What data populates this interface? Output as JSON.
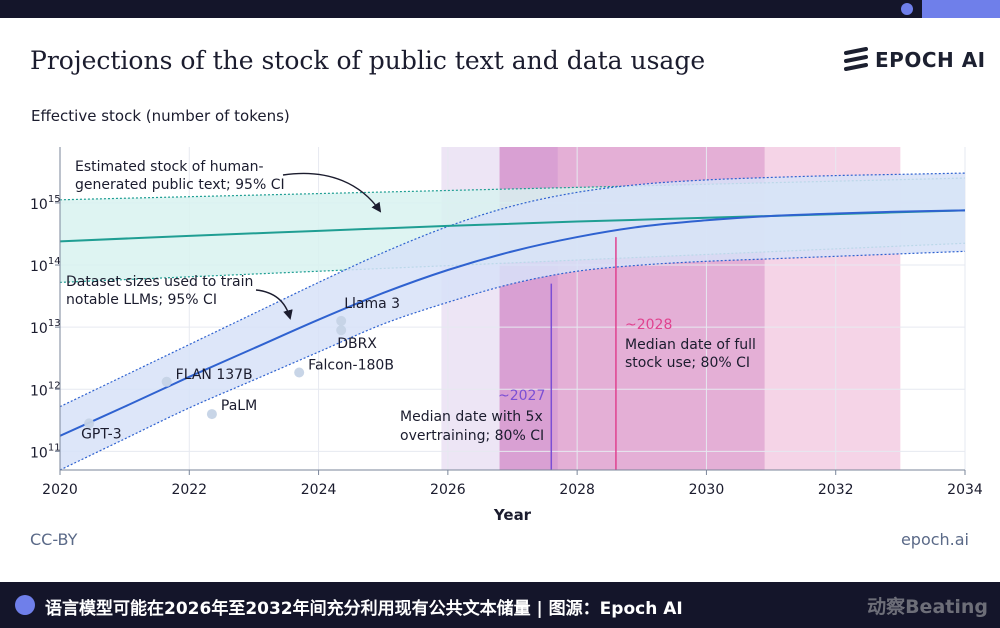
{
  "header": {
    "title": "Projections of the stock of public text and data usage",
    "brand": "EPOCH AI"
  },
  "footer": {
    "license": "CC-BY",
    "site": "epoch.ai"
  },
  "caption_bar": {
    "text": "语言模型可能在2026年至2032年间充分利用现有公共文本储量 | 图源：Epoch AI",
    "watermark": "动察Beating"
  },
  "colors": {
    "stock_line": "#1f9e93",
    "stock_band": "#d8f2f0",
    "usage_line": "#2f62d0",
    "usage_band": "#d7e2f8",
    "overtrain_region": "#e7dcf2",
    "overtrain_marker": "#7b4fd4",
    "full_use_region": "#f3c9e1",
    "full_use_marker": "#e0428f",
    "page_dark": "#14152a",
    "accent": "#6f7fea"
  },
  "chart_data": {
    "type": "line",
    "title": "Projections of the stock of public text and data usage",
    "xlabel": "Year",
    "ylabel": "Effective stock (number of tokens)",
    "xlim": [
      2020,
      2034
    ],
    "ylim_log10": [
      10.7,
      15.9
    ],
    "y_scale": "log",
    "grid": true,
    "x_ticks": [
      "2020",
      "2022",
      "2024",
      "2026",
      "2028",
      "2030",
      "2032",
      "2034"
    ],
    "y_ticks": [
      {
        "base": "10",
        "exp": "11",
        "log10": 11
      },
      {
        "base": "10",
        "exp": "12",
        "log10": 12
      },
      {
        "base": "10",
        "exp": "13",
        "log10": 13
      },
      {
        "base": "10",
        "exp": "14",
        "log10": 14
      },
      {
        "base": "10",
        "exp": "15",
        "log10": 15
      }
    ],
    "series": [
      {
        "name": "Estimated stock of human-generated public text; 95% CI",
        "median": [
          [
            2020,
            14.38
          ],
          [
            2022,
            14.47
          ],
          [
            2024,
            14.55
          ],
          [
            2026,
            14.63
          ],
          [
            2028,
            14.7
          ],
          [
            2030,
            14.76
          ],
          [
            2032,
            14.82
          ],
          [
            2034,
            14.88
          ]
        ],
        "upper": [
          [
            2020,
            15.05
          ],
          [
            2022,
            15.1
          ],
          [
            2024,
            15.15
          ],
          [
            2026,
            15.2
          ],
          [
            2028,
            15.25
          ],
          [
            2030,
            15.3
          ],
          [
            2032,
            15.35
          ],
          [
            2034,
            15.4
          ]
        ],
        "lower": [
          [
            2020,
            13.72
          ],
          [
            2022,
            13.81
          ],
          [
            2024,
            13.9
          ],
          [
            2026,
            13.99
          ],
          [
            2028,
            14.08
          ],
          [
            2030,
            14.17
          ],
          [
            2032,
            14.26
          ],
          [
            2034,
            14.35
          ]
        ]
      },
      {
        "name": "Dataset sizes used to train notable LLMs; 95% CI",
        "median": [
          [
            2020,
            11.25
          ],
          [
            2021,
            11.72
          ],
          [
            2022,
            12.2
          ],
          [
            2023,
            12.66
          ],
          [
            2024,
            13.12
          ],
          [
            2025,
            13.55
          ],
          [
            2026,
            13.92
          ],
          [
            2027,
            14.22
          ],
          [
            2028,
            14.45
          ],
          [
            2029,
            14.62
          ],
          [
            2030,
            14.72
          ],
          [
            2031,
            14.79
          ],
          [
            2032,
            14.83
          ],
          [
            2033,
            14.86
          ],
          [
            2034,
            14.88
          ]
        ],
        "upper": [
          [
            2020,
            11.72
          ],
          [
            2021,
            12.22
          ],
          [
            2022,
            12.72
          ],
          [
            2023,
            13.22
          ],
          [
            2024,
            13.72
          ],
          [
            2025,
            14.2
          ],
          [
            2026,
            14.62
          ],
          [
            2027,
            14.95
          ],
          [
            2028,
            15.17
          ],
          [
            2029,
            15.3
          ],
          [
            2030,
            15.37
          ],
          [
            2031,
            15.41
          ],
          [
            2032,
            15.44
          ],
          [
            2033,
            15.46
          ],
          [
            2034,
            15.48
          ]
        ],
        "lower": [
          [
            2020,
            10.7
          ],
          [
            2021,
            11.2
          ],
          [
            2022,
            11.7
          ],
          [
            2023,
            12.15
          ],
          [
            2024,
            12.6
          ],
          [
            2025,
            13.05
          ],
          [
            2026,
            13.4
          ],
          [
            2027,
            13.7
          ],
          [
            2028,
            13.9
          ],
          [
            2029,
            14.0
          ],
          [
            2030,
            14.06
          ],
          [
            2031,
            14.1
          ],
          [
            2032,
            14.14
          ],
          [
            2033,
            14.18
          ],
          [
            2034,
            14.22
          ]
        ]
      }
    ],
    "models": [
      {
        "label": "GPT-3",
        "x": 2020.45,
        "y": 11.45
      },
      {
        "label": "FLAN 137B",
        "x": 2021.65,
        "y": 12.12
      },
      {
        "label": "PaLM",
        "x": 2022.35,
        "y": 11.6
      },
      {
        "label": "Falcon-180B",
        "x": 2023.7,
        "y": 12.27
      },
      {
        "label": "Llama 3",
        "x": 2024.35,
        "y": 13.1
      },
      {
        "label": "DBRX",
        "x": 2024.35,
        "y": 12.95
      }
    ],
    "regions": [
      {
        "name": "Median date with 5x overtraining; 80% CI",
        "x_outer": [
          2025.9,
          2027.7
        ],
        "x_inner": [
          2026.8,
          2027.7
        ],
        "median": 2027.6,
        "median_label": "~2027"
      },
      {
        "name": "Median date of full stock use; 80% CI",
        "x_outer": [
          2026.8,
          2033.0
        ],
        "x_inner": [
          2026.8,
          2030.9
        ],
        "median": 2028.6,
        "median_label": "~2028"
      }
    ],
    "annotations": {
      "stock_note": [
        "Estimated stock of human-",
        "generated public text; 95% CI"
      ],
      "usage_note": [
        "Dataset sizes used to train",
        "notable LLMs; 95% CI"
      ],
      "overtrain_label": "~2027",
      "overtrain_note": [
        "Median date with 5x",
        "overtraining; 80% CI"
      ],
      "full_use_label": "~2028",
      "full_use_note": [
        "Median date of full",
        "stock use; 80% CI"
      ]
    }
  }
}
